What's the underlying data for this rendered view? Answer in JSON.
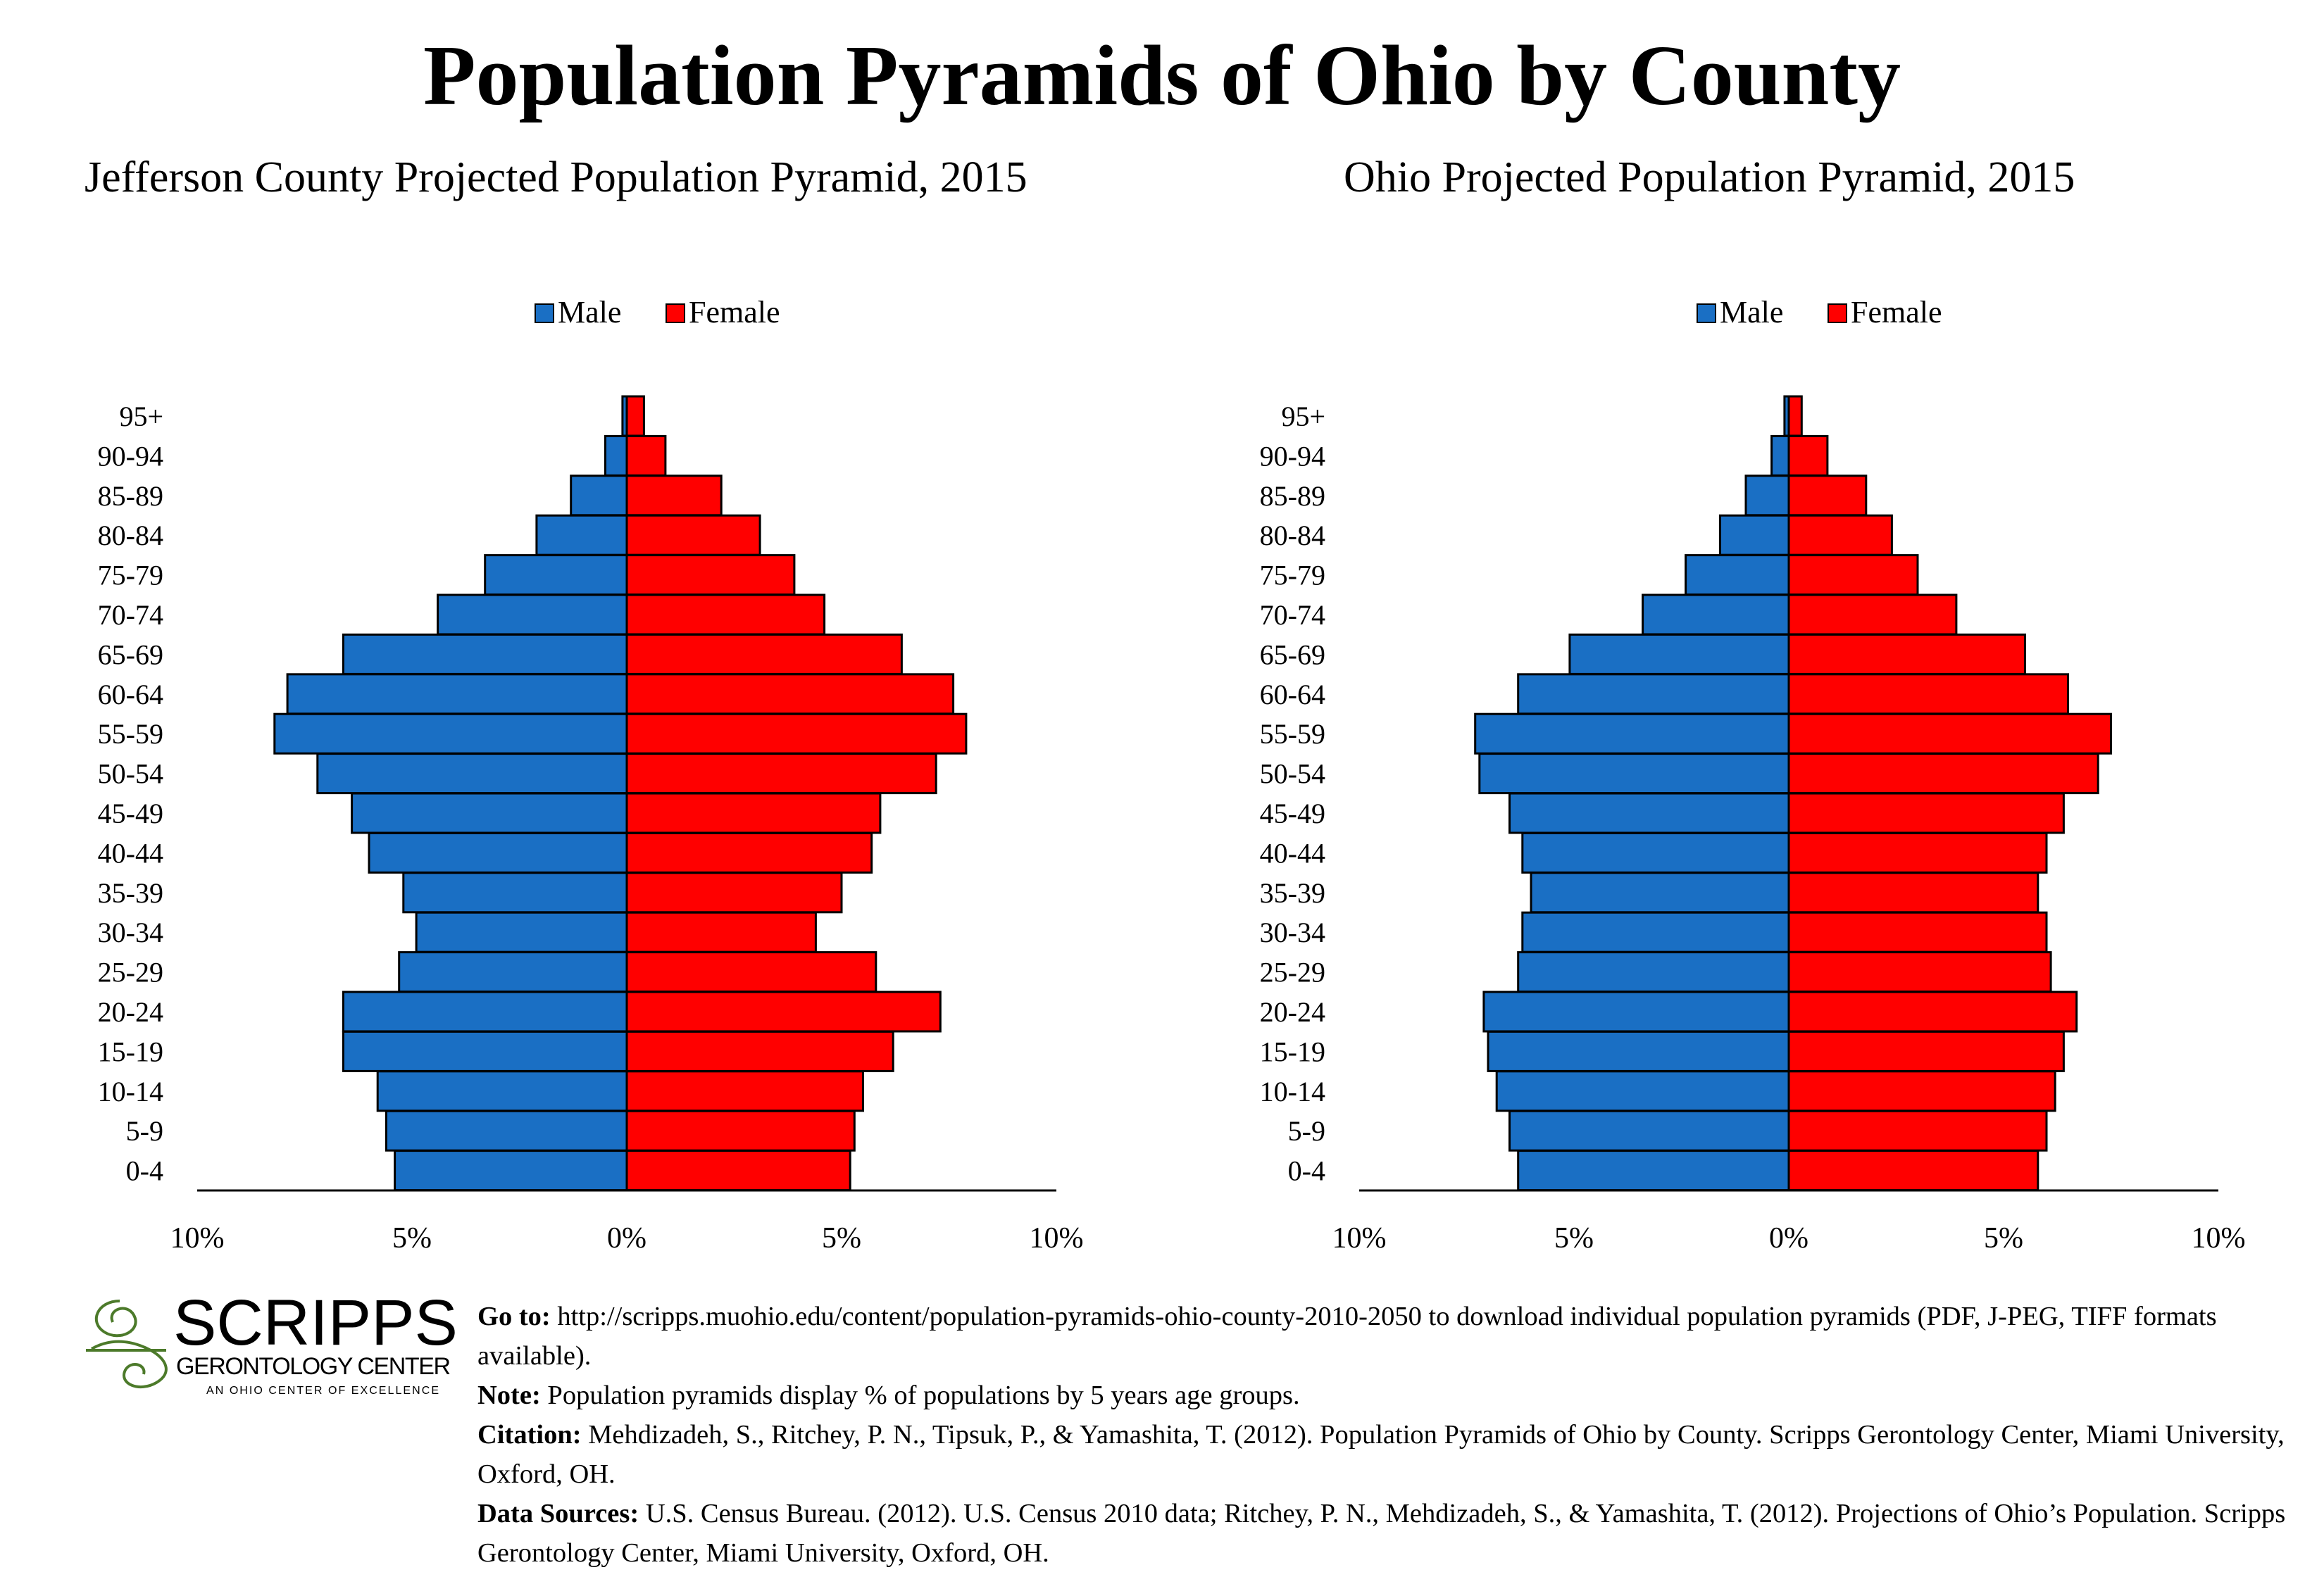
{
  "main_title": "Population Pyramids of Ohio by County",
  "colors": {
    "male": "#1a6fc4",
    "female": "#ff0000",
    "logo": "#b93a37",
    "logo_green": "#4c7a2a"
  },
  "chart_data": [
    {
      "type": "bar",
      "orientation": "horizontal-pyramid",
      "title": "Jefferson County Projected Population Pyramid, 2015",
      "legend_position": "top-center",
      "categories": [
        "0-4",
        "5-9",
        "10-14",
        "15-19",
        "20-24",
        "25-29",
        "30-34",
        "35-39",
        "40-44",
        "45-49",
        "50-54",
        "55-59",
        "60-64",
        "65-69",
        "70-74",
        "75-79",
        "80-84",
        "85-89",
        "90-94",
        "95+"
      ],
      "series": [
        {
          "name": "Male",
          "values": [
            5.4,
            5.6,
            5.8,
            6.6,
            6.6,
            5.3,
            4.9,
            5.2,
            6.0,
            6.4,
            7.2,
            8.2,
            7.9,
            6.6,
            4.4,
            3.3,
            2.1,
            1.3,
            0.5,
            0.1
          ]
        },
        {
          "name": "Female",
          "values": [
            5.2,
            5.3,
            5.5,
            6.2,
            7.3,
            5.8,
            4.4,
            5.0,
            5.7,
            5.9,
            7.2,
            7.9,
            7.6,
            6.4,
            4.6,
            3.9,
            3.1,
            2.2,
            0.9,
            0.4
          ]
        }
      ],
      "xlim": [
        -10,
        10
      ],
      "x_ticks": [
        "10%",
        "5%",
        "0%",
        "5%",
        "10%"
      ],
      "grid": false
    },
    {
      "type": "bar",
      "orientation": "horizontal-pyramid",
      "title": "Ohio Projected Population Pyramid, 2015",
      "legend_position": "top-center",
      "categories": [
        "0-4",
        "5-9",
        "10-14",
        "15-19",
        "20-24",
        "25-29",
        "30-34",
        "35-39",
        "40-44",
        "45-49",
        "50-54",
        "55-59",
        "60-64",
        "65-69",
        "70-74",
        "75-79",
        "80-84",
        "85-89",
        "90-94",
        "95+"
      ],
      "series": [
        {
          "name": "Male",
          "values": [
            6.3,
            6.5,
            6.8,
            7.0,
            7.1,
            6.3,
            6.2,
            6.0,
            6.2,
            6.5,
            7.2,
            7.3,
            6.3,
            5.1,
            3.4,
            2.4,
            1.6,
            1.0,
            0.4,
            0.1
          ]
        },
        {
          "name": "Female",
          "values": [
            5.8,
            6.0,
            6.2,
            6.4,
            6.7,
            6.1,
            6.0,
            5.8,
            6.0,
            6.4,
            7.2,
            7.5,
            6.5,
            5.5,
            3.9,
            3.0,
            2.4,
            1.8,
            0.9,
            0.3
          ]
        }
      ],
      "xlim": [
        -10,
        10
      ],
      "x_ticks": [
        "10%",
        "5%",
        "0%",
        "5%",
        "10%"
      ],
      "grid": false
    }
  ],
  "logo": {
    "name": "SCRIPPS",
    "line2": "GERONTOLOGY CENTER",
    "line3": "AN OHIO CENTER OF EXCELLENCE"
  },
  "notes": {
    "goto_label": "Go to:",
    "goto_text": " http://scripps.muohio.edu/content/population-pyramids-ohio-county-2010-2050 to download individual population pyramids (PDF, J-PEG, TIFF formats available).",
    "note_label": "Note:",
    "note_text": " Population pyramids display % of populations by 5 years age groups.",
    "citation_label": "Citation:",
    "citation_text": " Mehdizadeh, S., Ritchey, P. N., Tipsuk, P., & Yamashita, T. (2012). Population Pyramids of Ohio by County. Scripps Gerontology Center, Miami University, Oxford, OH.",
    "sources_label": "Data Sources:",
    "sources_text": " U.S. Census Bureau. (2012). U.S. Census 2010 data; Ritchey, P. N., Mehdizadeh, S., & Yamashita, T. (2012). Projections of Ohio’s Population. Scripps Gerontology Center, Miami University, Oxford, OH."
  }
}
